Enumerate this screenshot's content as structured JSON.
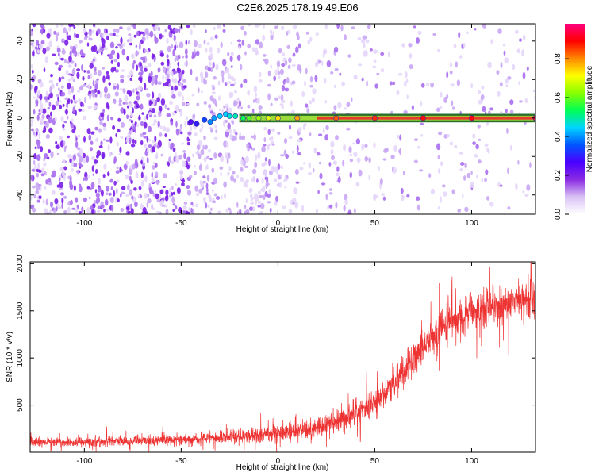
{
  "title": "C2E6.2025.178.19.49.E06",
  "colors": {
    "spectrogram_bg": "#8a2be2",
    "signal_line": "#ee3333",
    "snr_line": "#ee3333"
  },
  "chart_data": [
    {
      "type": "heatmap",
      "xlabel": "Height of straight line (km)",
      "ylabel": "Frequency (Hz)",
      "xlim": [
        -128,
        133
      ],
      "ylim": [
        -50,
        49
      ],
      "xticks": [
        -100,
        -50,
        0,
        50,
        100
      ],
      "yticks": [
        -40,
        -20,
        0,
        20,
        40
      ],
      "colorbar": {
        "label": "Normalized spectral amplitude",
        "ticks": [
          0.0,
          0.2,
          0.4,
          0.6,
          0.8
        ],
        "range": [
          0,
          0.98
        ],
        "colormap": [
          "#ffffff",
          "#d9c2f5",
          "#8a2be2",
          "#4a00ff",
          "#0055ff",
          "#00d4ff",
          "#00ff55",
          "#88ff00",
          "#ffff00",
          "#ff8800",
          "#ff0000",
          "#ff0080"
        ]
      },
      "carrier_track": {
        "x": [
          -45,
          -42,
          -38,
          -35,
          -33,
          -30,
          -27,
          -25,
          -22,
          -18,
          -15,
          -10,
          -5,
          0,
          10,
          30,
          50,
          75,
          100,
          133
        ],
        "frequency": [
          -2,
          -3,
          -1,
          -2,
          0,
          1,
          2,
          1,
          1,
          0,
          0,
          0,
          0,
          0,
          0,
          0,
          0,
          0,
          0,
          0
        ],
        "amplitude": [
          0.25,
          0.3,
          0.35,
          0.4,
          0.42,
          0.45,
          0.45,
          0.48,
          0.5,
          0.55,
          0.6,
          0.65,
          0.7,
          0.75,
          0.8,
          0.85,
          0.88,
          0.9,
          0.92,
          0.95
        ]
      },
      "grid": false,
      "legend": "colorbar-right"
    },
    {
      "type": "line",
      "xlabel": "Height of straight line (km)",
      "ylabel": "SNR (10 * v/v)",
      "xlim": [
        -128,
        133
      ],
      "ylim": [
        0,
        2020
      ],
      "xticks": [
        -100,
        -50,
        0,
        50,
        100
      ],
      "yticks": [
        500,
        1000,
        1500,
        2000
      ],
      "x": [
        -128,
        -100,
        -75,
        -50,
        -25,
        0,
        10,
        20,
        30,
        40,
        50,
        60,
        70,
        80,
        90,
        100,
        110,
        120,
        133
      ],
      "y_mean": [
        100,
        110,
        120,
        135,
        160,
        200,
        220,
        260,
        330,
        420,
        540,
        740,
        1000,
        1250,
        1400,
        1480,
        1530,
        1580,
        1650
      ],
      "y_spread": [
        60,
        60,
        60,
        70,
        80,
        100,
        110,
        120,
        140,
        160,
        180,
        210,
        220,
        230,
        230,
        230,
        230,
        230,
        230
      ],
      "grid": false,
      "legend": "none"
    }
  ]
}
